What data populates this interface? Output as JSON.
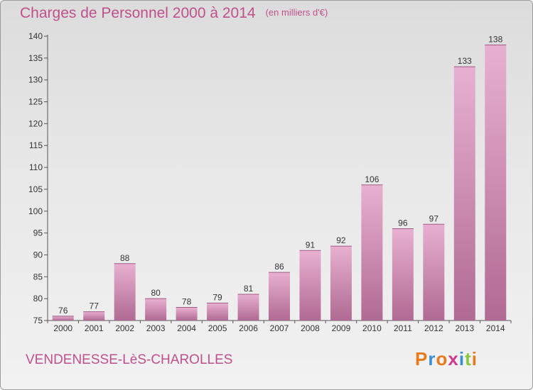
{
  "colors": {
    "accent": "#c0508c",
    "bar_light": "#e8b0d0",
    "bar_dark": "#b06a93",
    "logo_letters": [
      "#e87a1e",
      "#3a8fd0",
      "#e87a1e",
      "#d03a8a",
      "#3a8fd0",
      "#8cc63f"
    ]
  },
  "chart_data": {
    "type": "bar",
    "title": "Charges de Personnel 2000 à 2014",
    "unit_note": "(en milliers d'€)",
    "categories": [
      "2000",
      "2001",
      "2002",
      "2003",
      "2004",
      "2005",
      "2006",
      "2007",
      "2008",
      "2009",
      "2010",
      "2011",
      "2012",
      "2013",
      "2014"
    ],
    "values": [
      76,
      77,
      88,
      80,
      78,
      79,
      81,
      86,
      91,
      92,
      106,
      96,
      97,
      133,
      138
    ],
    "ylim": [
      75,
      140
    ],
    "yticks": [
      75,
      80,
      85,
      90,
      95,
      100,
      105,
      110,
      115,
      120,
      125,
      130,
      135,
      140
    ],
    "xlabel": "",
    "ylabel": "",
    "grid": false,
    "data_labels": true
  },
  "footer": {
    "town": "VENDENESSE-LèS-CHAROLLES",
    "logo_letters": [
      "P",
      "r",
      "o",
      "x",
      "i",
      "t",
      "i"
    ]
  }
}
